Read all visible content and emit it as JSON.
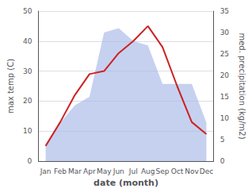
{
  "chart_data": {
    "type": "line",
    "categories": [
      "Jan",
      "Feb",
      "Mar",
      "Apr",
      "May",
      "Jun",
      "Jul",
      "Aug",
      "Sep",
      "Oct",
      "Nov",
      "Dec"
    ],
    "series": [
      {
        "type": "area",
        "color": "#a8b8e8",
        "axis": "y2",
        "values": [
          4,
          9,
          13,
          15,
          30,
          31,
          28,
          27,
          18,
          18,
          18,
          9
        ]
      },
      {
        "type": "line",
        "color": "#cc2222",
        "values": [
          5,
          13,
          22,
          29,
          30,
          36,
          40,
          45,
          38,
          25,
          13,
          9
        ]
      }
    ],
    "xlabel": "date (month)",
    "ylabel": "max temp (C)",
    "y2label": "med. precipitation (kg/m2)",
    "ylim": [
      0,
      50
    ],
    "yticks": [
      0,
      10,
      20,
      30,
      40,
      50
    ],
    "y2lim": [
      0,
      35
    ],
    "y2ticks": [
      0,
      5,
      10,
      15,
      20,
      25,
      30,
      35
    ],
    "grid": true
  }
}
